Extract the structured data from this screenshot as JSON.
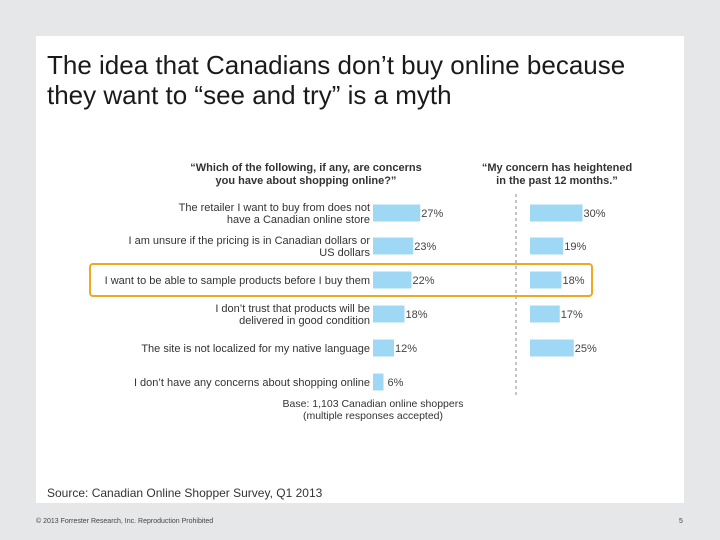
{
  "slide": {
    "title": "The idea that Canadians don’t buy online because they want to “see and try” is a myth",
    "source": "Source: Canadian Online Shopper Survey, Q1 2013",
    "copyright": "© 2013 Forrester Research, Inc. Reproduction Prohibited",
    "page_number": "5"
  },
  "colors": {
    "bar": "#9fd8f4",
    "highlight": "#f0a722",
    "divider": "#8a8a8a"
  },
  "chart_data": {
    "type": "bar",
    "orientation": "horizontal",
    "left_heading": [
      "“Which of the following, if any, are concerns",
      "you have about shopping online?”"
    ],
    "right_heading": [
      "“My concern has heightened",
      "in the past 12 months.”"
    ],
    "categories": [
      [
        "The retailer I want to buy from does not",
        "have a Canadian online store"
      ],
      [
        "I am unsure if the pricing is in Canadian dollars or",
        "US dollars"
      ],
      [
        "I want to be able to sample products before I buy them"
      ],
      [
        "I don’t trust that products will be",
        "delivered in good condition"
      ],
      [
        "The site is not localized for my native language"
      ],
      [
        "I don’t have any concerns about shopping online"
      ]
    ],
    "series": [
      {
        "values": [
          27,
          23,
          22,
          18,
          12,
          6
        ],
        "labels": [
          "27%",
          "23%",
          "22%",
          "18%",
          "12%",
          "6%"
        ]
      },
      {
        "values": [
          30,
          19,
          18,
          17,
          25,
          null
        ],
        "labels": [
          "30%",
          "19%",
          "18%",
          "17%",
          "25%",
          ""
        ]
      }
    ],
    "highlighted_category": 2,
    "unit": "%",
    "base_note": [
      "Base: 1,103 Canadian online shoppers",
      "(multiple responses accepted)"
    ]
  }
}
